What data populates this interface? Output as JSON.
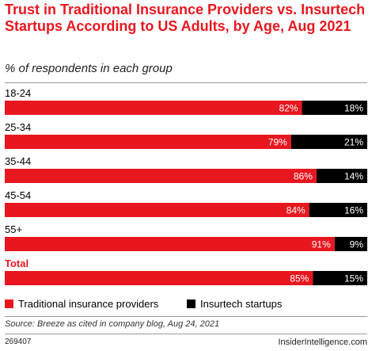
{
  "chart_data": {
    "type": "bar",
    "orientation": "horizontal",
    "stacked": true,
    "title": "Trust in Traditional Insurance Providers vs. Insurtech Startups According to US Adults, by Age, Aug 2021",
    "subtitle": "% of respondents in each group",
    "categories": [
      "18-24",
      "25-34",
      "35-44",
      "45-54",
      "55+",
      "Total"
    ],
    "series": [
      {
        "name": "Traditional insurance providers",
        "values": [
          82,
          79,
          86,
          84,
          91,
          85
        ],
        "color": "#e8171f"
      },
      {
        "name": "Insurtech startups",
        "values": [
          18,
          21,
          14,
          16,
          9,
          15
        ],
        "color": "#000000"
      }
    ],
    "value_suffix": "%",
    "xlim": [
      0,
      100
    ],
    "legend_position": "bottom-left",
    "grid": false
  },
  "source": "Source: Breeze as cited in company blog, Aug 24, 2021",
  "chart_id": "269407",
  "brand": "InsiderIntelligence.com",
  "colors": {
    "accent": "#e8171f",
    "dark": "#000000"
  }
}
